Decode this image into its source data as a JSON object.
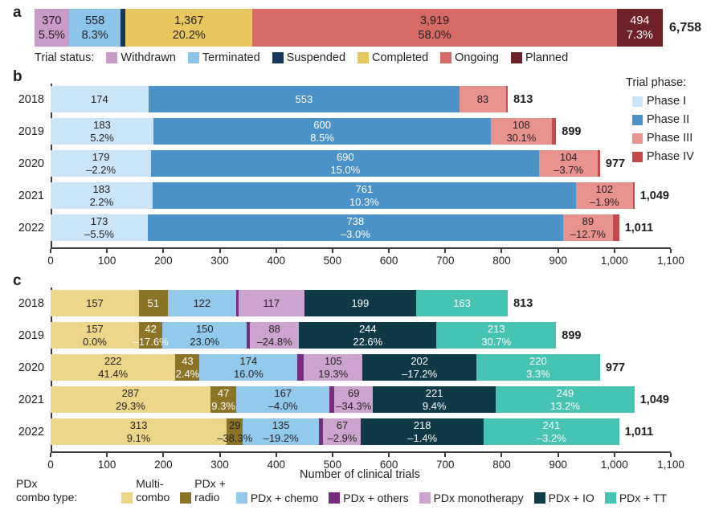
{
  "figure": {
    "panels": {
      "a": {
        "letter": "a"
      },
      "b": {
        "letter": "b"
      },
      "c": {
        "letter": "c"
      }
    }
  },
  "chart_data": [
    {
      "panel": "a",
      "type": "bar",
      "subtype": "stacked_horizontal_single",
      "legend_title": "Trial status:",
      "total_display": "6,758",
      "total_value": 6758,
      "segments": [
        {
          "label": "Withdrawn",
          "value": 370,
          "display": "370",
          "pct": "5.5%",
          "color": "#c89bc8",
          "label_color": "dark"
        },
        {
          "label": "Terminated",
          "value": 558,
          "display": "558",
          "pct": "8.3%",
          "color": "#8cc5e9",
          "label_color": "dark"
        },
        {
          "label": "Suspended",
          "value": 50,
          "display": "",
          "pct": "",
          "color": "#16365e",
          "label_color": "none"
        },
        {
          "label": "Completed",
          "value": 1367,
          "display": "1,367",
          "pct": "20.2%",
          "color": "#e8c75e",
          "label_color": "dark"
        },
        {
          "label": "Ongoing",
          "value": 3919,
          "display": "3,919",
          "pct": "58.0%",
          "color": "#d76a64",
          "label_color": "dark"
        },
        {
          "label": "Planned",
          "value": 494,
          "display": "494",
          "pct": "7.3%",
          "color": "#6e2127",
          "label_color": "light"
        }
      ]
    },
    {
      "panel": "b",
      "type": "bar",
      "subtype": "stacked_horizontal",
      "legend_title": "Trial phase:",
      "axis": {
        "min": 0,
        "max": 1100,
        "ticks": [
          "0",
          "100",
          "200",
          "300",
          "400",
          "500",
          "600",
          "700",
          "800",
          "900",
          "1,000",
          "1,100"
        ]
      },
      "series": [
        {
          "name": "Phase I",
          "color": "#c9e5f7",
          "label_color": "dark"
        },
        {
          "name": "Phase II",
          "color": "#4b92c9",
          "label_color": "light"
        },
        {
          "name": "Phase III",
          "color": "#e9938f",
          "label_color": "dark"
        },
        {
          "name": "Phase IV",
          "color": "#c7494b",
          "label_color": "none"
        }
      ],
      "rows": [
        {
          "year": "2018",
          "total": "813",
          "values": [
            174,
            553,
            83,
            3
          ],
          "value_labels": [
            "174",
            "553",
            "83",
            ""
          ],
          "pct_labels": [
            "",
            "",
            "",
            ""
          ]
        },
        {
          "year": "2019",
          "total": "899",
          "values": [
            183,
            600,
            108,
            8
          ],
          "value_labels": [
            "183",
            "600",
            "108",
            ""
          ],
          "pct_labels": [
            "5.2%",
            "8.5%",
            "30.1%",
            ""
          ]
        },
        {
          "year": "2020",
          "total": "977",
          "values": [
            179,
            690,
            104,
            4
          ],
          "value_labels": [
            "179",
            "690",
            "104",
            ""
          ],
          "pct_labels": [
            "–2.2%",
            "15.0%",
            "–3.7%",
            ""
          ]
        },
        {
          "year": "2021",
          "total": "1,049",
          "values": [
            183,
            761,
            102,
            3
          ],
          "value_labels": [
            "183",
            "761",
            "102",
            ""
          ],
          "pct_labels": [
            "2.2%",
            "10.3%",
            "–1.9%",
            ""
          ]
        },
        {
          "year": "2022",
          "total": "1,011",
          "values": [
            173,
            738,
            89,
            11
          ],
          "value_labels": [
            "173",
            "738",
            "89",
            ""
          ],
          "pct_labels": [
            "–5.5%",
            "–3.0%",
            "–12.7%",
            ""
          ]
        }
      ]
    },
    {
      "panel": "c",
      "type": "bar",
      "subtype": "stacked_horizontal",
      "xlabel": "Number of clinical trials",
      "legend_title_line1": "PDx",
      "legend_title_line2": "combo type:",
      "axis": {
        "min": 0,
        "max": 1100,
        "ticks": [
          "0",
          "100",
          "200",
          "300",
          "400",
          "500",
          "600",
          "700",
          "800",
          "900",
          "1,000",
          "1,100"
        ]
      },
      "series": [
        {
          "name": "Multi-combo",
          "legend_line1": "Multi-",
          "legend_line2": "combo",
          "color": "#edd58a",
          "label_color": "dark"
        },
        {
          "name": "PDx + radio",
          "legend_line1": "PDx +",
          "legend_line2": "radio",
          "color": "#8c7326",
          "label_color": "light"
        },
        {
          "name": "PDx + chemo",
          "color": "#93c9eb",
          "label_color": "dark"
        },
        {
          "name": "PDx + others",
          "color": "#772d7e",
          "label_color": "none"
        },
        {
          "name": "PDx monotherapy",
          "color": "#cda4cf",
          "label_color": "dark"
        },
        {
          "name": "PDx + IO",
          "color": "#0e3a47",
          "label_color": "light"
        },
        {
          "name": "PDx + TT",
          "color": "#45c3b3",
          "label_color": "light"
        }
      ],
      "rows": [
        {
          "year": "2018",
          "total": "813",
          "values": [
            157,
            51,
            122,
            4,
            117,
            199,
            163
          ],
          "value_labels": [
            "157",
            "51",
            "122",
            "",
            "117",
            "199",
            "163"
          ],
          "pct_labels": [
            "",
            "",
            "",
            "",
            "",
            "",
            ""
          ]
        },
        {
          "year": "2019",
          "total": "899",
          "values": [
            157,
            42,
            150,
            5,
            88,
            244,
            213
          ],
          "value_labels": [
            "157",
            "42",
            "150",
            "",
            "88",
            "244",
            "213"
          ],
          "pct_labels": [
            "0.0%",
            "–17.6%",
            "23.0%",
            "",
            "–24.8%",
            "22.6%",
            "30.7%"
          ]
        },
        {
          "year": "2020",
          "total": "977",
          "values": [
            222,
            43,
            174,
            11,
            105,
            202,
            220
          ],
          "value_labels": [
            "222",
            "43",
            "174",
            "",
            "105",
            "202",
            "220"
          ],
          "pct_labels": [
            "41.4%",
            "2.4%",
            "16.0%",
            "",
            "19.3%",
            "–17.2%",
            "3.3%"
          ]
        },
        {
          "year": "2021",
          "total": "1,049",
          "values": [
            287,
            47,
            167,
            9,
            69,
            221,
            249
          ],
          "value_labels": [
            "287",
            "47",
            "167",
            "",
            "69",
            "221",
            "249"
          ],
          "pct_labels": [
            "29.3%",
            "9.3%",
            "–4.0%",
            "",
            "–34.3%",
            "9.4%",
            "13.2%"
          ]
        },
        {
          "year": "2022",
          "total": "1,011",
          "values": [
            313,
            29,
            135,
            8,
            67,
            218,
            241
          ],
          "value_labels": [
            "313",
            "29",
            "135",
            "",
            "67",
            "218",
            "241"
          ],
          "pct_labels": [
            "9.1%",
            "–38.3%",
            "–19.2%",
            "",
            "–2.9%",
            "–1.4%",
            "–3.2%"
          ],
          "text_overrides": {
            "1": "dark"
          }
        }
      ]
    }
  ]
}
